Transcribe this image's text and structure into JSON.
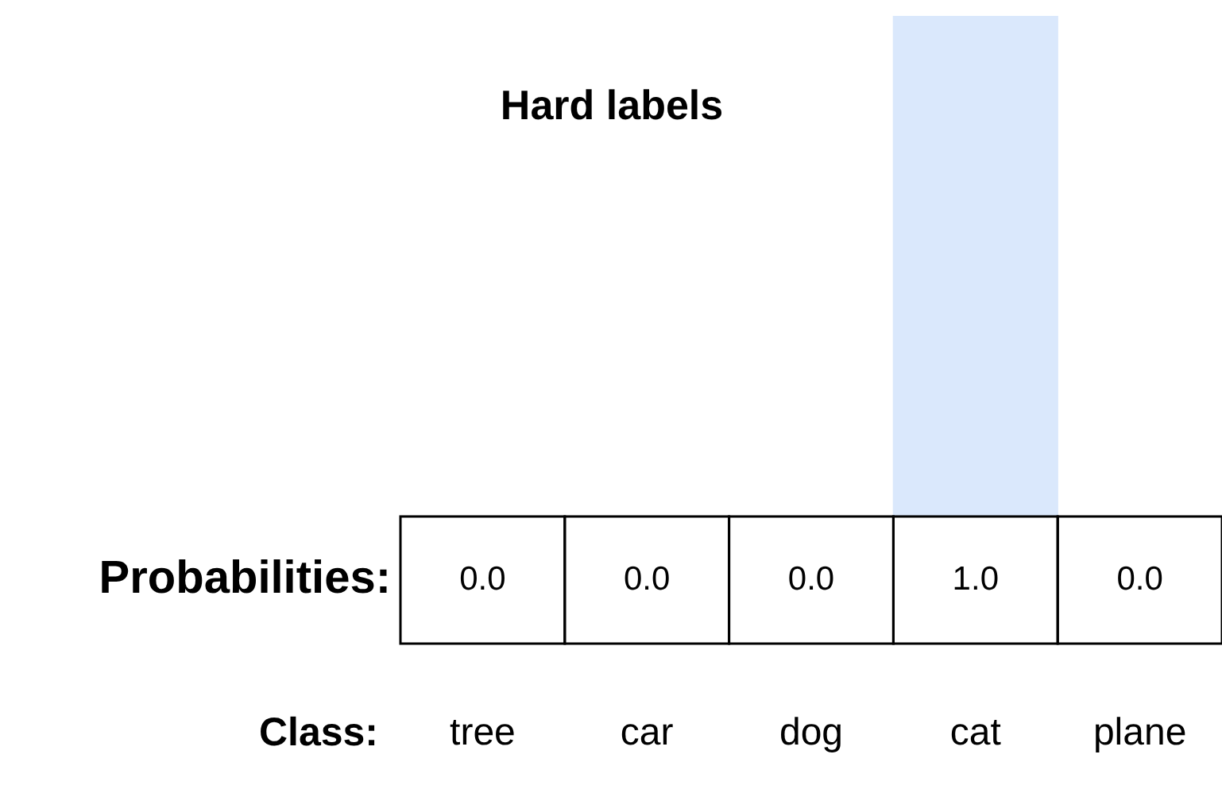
{
  "chart_data": {
    "type": "bar",
    "title": "Hard labels",
    "xlabel": "Class:",
    "ylabel": "Probabilities:",
    "categories": [
      "tree",
      "car",
      "dog",
      "cat",
      "plane"
    ],
    "values": [
      0,
      0,
      0,
      1,
      0
    ],
    "value_labels": [
      "0.0",
      "0.0",
      "0.0",
      "1.0",
      "0.0"
    ],
    "color": "#dae8fc",
    "ylim": [
      0,
      1
    ]
  }
}
